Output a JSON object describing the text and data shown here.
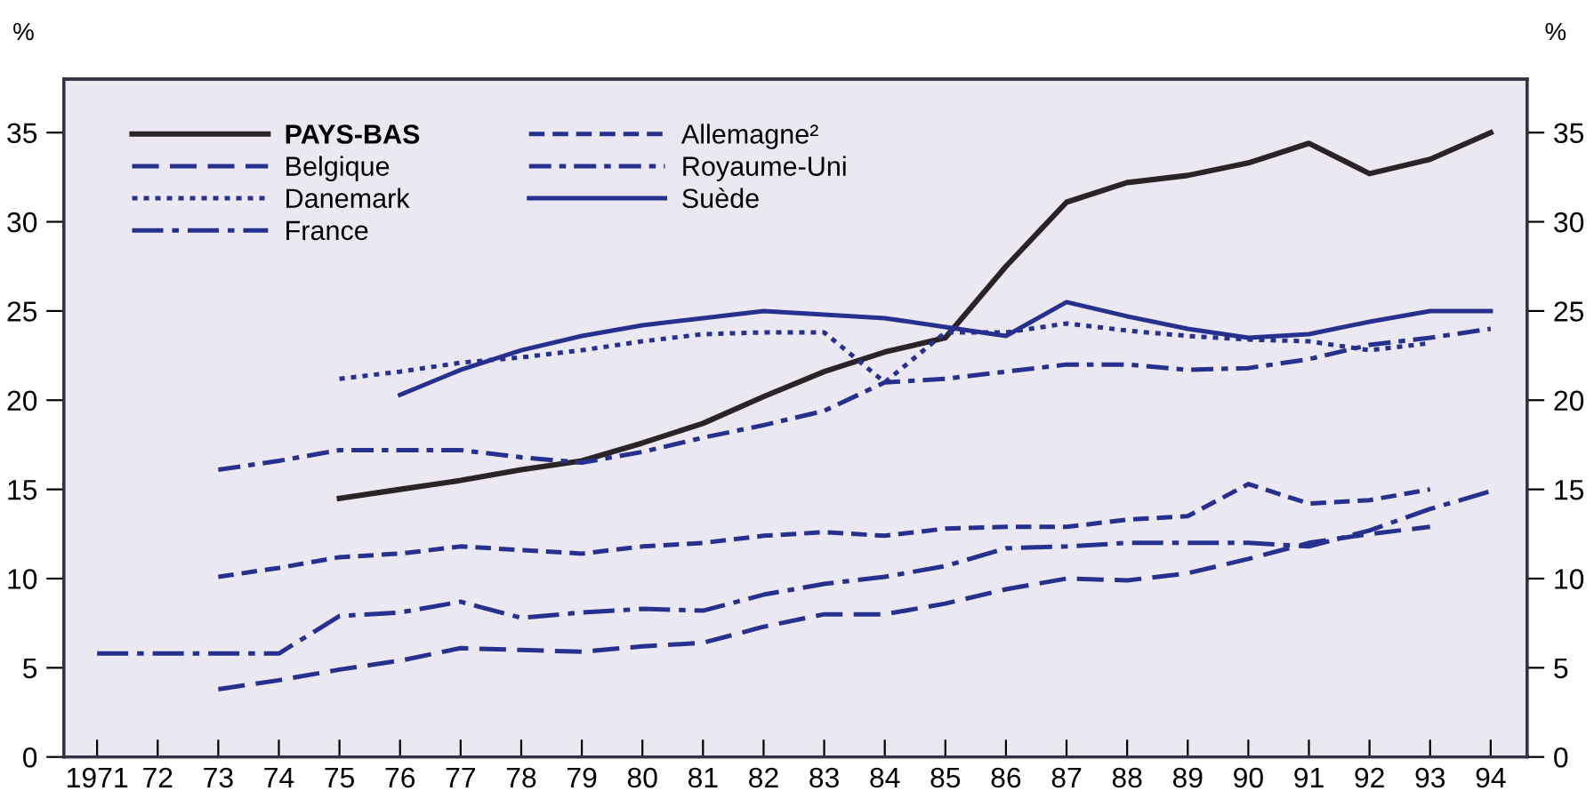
{
  "chart_data": {
    "type": "line",
    "ylabel": "%",
    "y2label": "%",
    "xlim": [
      1970.45,
      1994.6
    ],
    "ylim": [
      0,
      38
    ],
    "y2lim": [
      0,
      38
    ],
    "xticks": [
      {
        "value": 1971,
        "label": "1971"
      },
      {
        "value": 1972,
        "label": "72"
      },
      {
        "value": 1973,
        "label": "73"
      },
      {
        "value": 1974,
        "label": "74"
      },
      {
        "value": 1975,
        "label": "75"
      },
      {
        "value": 1976,
        "label": "76"
      },
      {
        "value": 1977,
        "label": "77"
      },
      {
        "value": 1978,
        "label": "78"
      },
      {
        "value": 1979,
        "label": "79"
      },
      {
        "value": 1980,
        "label": "80"
      },
      {
        "value": 1981,
        "label": "81"
      },
      {
        "value": 1982,
        "label": "82"
      },
      {
        "value": 1983,
        "label": "83"
      },
      {
        "value": 1984,
        "label": "84"
      },
      {
        "value": 1985,
        "label": "85"
      },
      {
        "value": 1986,
        "label": "86"
      },
      {
        "value": 1987,
        "label": "87"
      },
      {
        "value": 1988,
        "label": "88"
      },
      {
        "value": 1989,
        "label": "89"
      },
      {
        "value": 1990,
        "label": "90"
      },
      {
        "value": 1991,
        "label": "91"
      },
      {
        "value": 1992,
        "label": "92"
      },
      {
        "value": 1993,
        "label": "93"
      },
      {
        "value": 1994,
        "label": "94"
      }
    ],
    "yticks": [
      0,
      5,
      10,
      15,
      20,
      25,
      30,
      35
    ],
    "y2ticks": [
      0,
      5,
      10,
      15,
      20,
      25,
      30,
      35
    ],
    "grid": false,
    "legend": "top left",
    "marker": "none",
    "series": [
      {
        "name": "PAYS-BAS",
        "color": "#2b2426",
        "line_style": "solid",
        "x": [
          1975,
          1976,
          1977,
          1978,
          1979,
          1980,
          1981,
          1982,
          1983,
          1984,
          1985,
          1986,
          1987,
          1988,
          1989,
          1990,
          1991,
          1992,
          1993,
          1994
        ],
        "values": [
          14.5,
          15.0,
          15.5,
          16.1,
          16.6,
          17.6,
          18.7,
          20.2,
          21.6,
          22.7,
          23.5,
          27.5,
          31.1,
          32.2,
          32.6,
          33.3,
          34.4,
          32.7,
          33.5,
          35.0
        ]
      },
      {
        "name": "Belgique",
        "color": "#25308f",
        "line_style": "longdash",
        "x": [
          1973,
          1974,
          1975,
          1976,
          1977,
          1978,
          1979,
          1980,
          1981,
          1982,
          1983,
          1984,
          1985,
          1986,
          1987,
          1988,
          1989,
          1990,
          1991,
          1992,
          1993
        ],
        "values": [
          3.8,
          4.3,
          4.9,
          5.4,
          6.1,
          6.0,
          5.9,
          6.2,
          6.4,
          7.3,
          8.0,
          8.0,
          8.6,
          9.4,
          10.0,
          9.9,
          10.3,
          11.1,
          12.0,
          12.5,
          12.9
        ]
      },
      {
        "name": "Danemark",
        "color": "#25308f",
        "line_style": "dotted",
        "x": [
          1975,
          1976,
          1977,
          1978,
          1979,
          1980,
          1981,
          1982,
          1983,
          1984,
          1985,
          1986,
          1987,
          1988,
          1989,
          1990,
          1991,
          1992,
          1993
        ],
        "values": [
          21.2,
          21.6,
          22.1,
          22.4,
          22.8,
          23.3,
          23.7,
          23.8,
          23.8,
          21.0,
          23.8,
          23.8,
          24.3,
          23.9,
          23.6,
          23.4,
          23.3,
          22.8,
          23.2
        ]
      },
      {
        "name": "France",
        "color": "#25308f",
        "line_style": "dashdotlong",
        "x": [
          1971,
          1972,
          1973,
          1974,
          1975,
          1976,
          1977,
          1978,
          1979,
          1980,
          1981,
          1982,
          1983,
          1984,
          1985,
          1986,
          1987,
          1988,
          1989,
          1990,
          1991,
          1992,
          1993,
          1994
        ],
        "values": [
          5.8,
          5.8,
          5.8,
          5.8,
          7.9,
          8.1,
          8.7,
          7.8,
          8.1,
          8.3,
          8.2,
          9.1,
          9.7,
          10.1,
          10.7,
          11.7,
          11.8,
          12.0,
          12.0,
          12.0,
          11.8,
          12.7,
          13.9,
          14.9
        ]
      },
      {
        "name": "Allemagne²",
        "color": "#25308f",
        "line_style": "dashed",
        "x": [
          1973,
          1974,
          1975,
          1976,
          1977,
          1978,
          1979,
          1980,
          1981,
          1982,
          1983,
          1984,
          1985,
          1986,
          1987,
          1988,
          1989,
          1990,
          1991,
          1992,
          1993
        ],
        "values": [
          10.1,
          10.6,
          11.2,
          11.4,
          11.8,
          11.6,
          11.4,
          11.8,
          12.0,
          12.4,
          12.6,
          12.4,
          12.8,
          12.9,
          12.9,
          13.3,
          13.5,
          15.3,
          14.2,
          14.4,
          15.0
        ]
      },
      {
        "name": "Royaume-Uni",
        "color": "#25308f",
        "line_style": "dashdot",
        "x": [
          1973,
          1974,
          1975,
          1976,
          1977,
          1978,
          1979,
          1980,
          1981,
          1982,
          1983,
          1984,
          1985,
          1986,
          1987,
          1988,
          1989,
          1990,
          1991,
          1992,
          1993,
          1994
        ],
        "values": [
          16.1,
          16.6,
          17.2,
          17.2,
          17.2,
          16.8,
          16.5,
          17.1,
          17.9,
          18.6,
          19.4,
          21.0,
          21.2,
          21.6,
          22.0,
          22.0,
          21.7,
          21.8,
          22.3,
          23.1,
          23.5,
          24.0
        ]
      },
      {
        "name": "Suède",
        "color": "#25308f",
        "line_style": "solid",
        "x": [
          1976,
          1977,
          1978,
          1979,
          1980,
          1981,
          1982,
          1983,
          1984,
          1985,
          1986,
          1987,
          1988,
          1989,
          1990,
          1991,
          1992,
          1993,
          1994
        ],
        "values": [
          20.3,
          21.7,
          22.8,
          23.6,
          24.2,
          24.6,
          25.0,
          24.8,
          24.6,
          24.1,
          23.6,
          25.5,
          24.7,
          24.0,
          23.5,
          23.7,
          24.4,
          25.0,
          25.0
        ]
      }
    ]
  }
}
